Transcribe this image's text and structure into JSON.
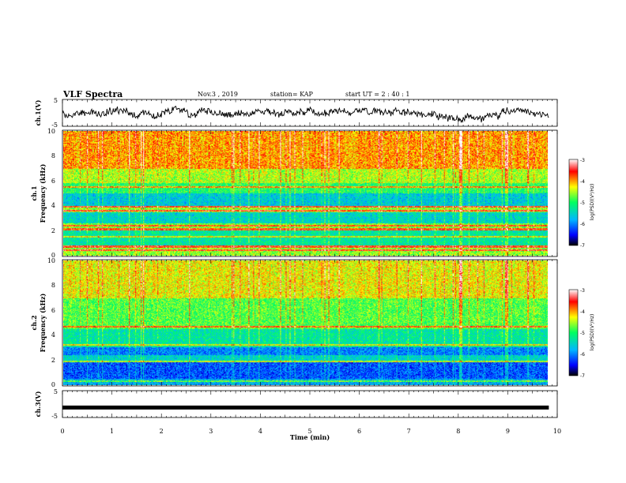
{
  "header": {
    "title": "VLF Spectra",
    "date": "Nov.3 , 2019",
    "station": "station= KAP",
    "start": "start UT = 2 : 40 : 1"
  },
  "chart_data": [
    {
      "type": "line",
      "id": "ch1-waveform",
      "ylabel": "ch.1(V)",
      "yticks": [
        "5",
        "-5"
      ],
      "ylim": [
        -5,
        5
      ],
      "xlim": [
        0,
        10
      ],
      "x_end": 9.83,
      "data_mean": 0.3,
      "data_amplitude": 2.2,
      "color": "#000000"
    },
    {
      "type": "heatmap",
      "id": "ch1-spectrogram",
      "ylabel": "Frequency (kHz)",
      "channel_label": "ch.1",
      "yticks": [
        "0",
        "2",
        "4",
        "6",
        "8",
        "10"
      ],
      "ylim": [
        0,
        10
      ],
      "xlim": [
        0,
        10
      ],
      "x_end": 9.83,
      "colorbar": {
        "label": "log(PSD)(V²/Hz)",
        "ticks": [
          "-3",
          "-4",
          "-5",
          "-6",
          "-7"
        ],
        "range": [
          -7,
          -3
        ]
      },
      "value_profile_khz": [
        {
          "f_min": 0,
          "f_max": 0.8,
          "level": -4.6
        },
        {
          "f_min": 0.8,
          "f_max": 2.0,
          "level": -5.3
        },
        {
          "f_min": 2.0,
          "f_max": 2.6,
          "level": -4.7
        },
        {
          "f_min": 2.6,
          "f_max": 3.5,
          "level": -5.5
        },
        {
          "f_min": 3.5,
          "f_max": 4.0,
          "level": -4.6
        },
        {
          "f_min": 4.0,
          "f_max": 5.0,
          "level": -5.6
        },
        {
          "f_min": 5.0,
          "f_max": 5.8,
          "level": -5.0
        },
        {
          "f_min": 5.8,
          "f_max": 7.0,
          "level": -4.5
        },
        {
          "f_min": 7.0,
          "f_max": 10.0,
          "level": -4.0
        }
      ],
      "narrowband_lines_khz": [
        0.4,
        0.7,
        1.5,
        2.1,
        2.4,
        3.6,
        3.9,
        5.5
      ]
    },
    {
      "type": "heatmap",
      "id": "ch2-spectrogram",
      "ylabel": "Frequency (kHz)",
      "channel_label": "ch.2",
      "yticks": [
        "0",
        "2",
        "4",
        "6",
        "8",
        "10"
      ],
      "ylim": [
        0,
        10
      ],
      "xlim": [
        0,
        10
      ],
      "x_end": 9.83,
      "colorbar": {
        "label": "log(PSD)(V²/Hz)",
        "ticks": [
          "-3",
          "-4",
          "-5",
          "-6",
          "-7"
        ],
        "range": [
          -7,
          -3
        ]
      },
      "value_profile_khz": [
        {
          "f_min": 0,
          "f_max": 0.5,
          "level": -5.8
        },
        {
          "f_min": 0.5,
          "f_max": 1.8,
          "level": -6.2
        },
        {
          "f_min": 1.8,
          "f_max": 2.4,
          "level": -5.5
        },
        {
          "f_min": 2.4,
          "f_max": 3.0,
          "level": -6.0
        },
        {
          "f_min": 3.0,
          "f_max": 4.5,
          "level": -5.3
        },
        {
          "f_min": 4.5,
          "f_max": 7.0,
          "level": -4.8
        },
        {
          "f_min": 7.0,
          "f_max": 10.0,
          "level": -4.3
        }
      ],
      "narrowband_lines_khz": [
        0.3,
        1.9,
        3.2,
        4.7
      ]
    },
    {
      "type": "line",
      "id": "ch3-waveform",
      "ylabel": "ch.3(V)",
      "yticks": [
        "5",
        "-5"
      ],
      "ylim": [
        -5,
        5
      ],
      "xlim": [
        0,
        10
      ],
      "x_end": 9.83,
      "constant_value": -1.3,
      "color": "#000000",
      "xlabel": "Time (min)",
      "xticks": [
        "0",
        "1",
        "2",
        "3",
        "4",
        "5",
        "6",
        "7",
        "8",
        "9",
        "10"
      ]
    }
  ]
}
